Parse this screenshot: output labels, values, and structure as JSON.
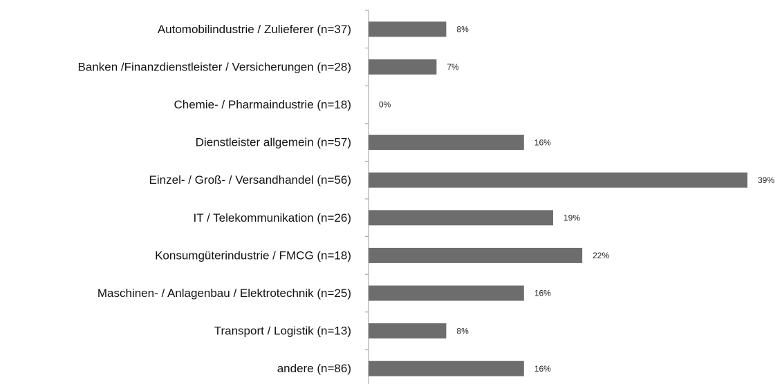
{
  "chart_data": {
    "type": "bar",
    "orientation": "horizontal",
    "categories": [
      "Automobilindustrie / Zulieferer (n=37)",
      "Banken /Finanzdienstleister / Versicherungen (n=28)",
      "Chemie- / Pharmaindustrie (n=18)",
      "Dienstleister allgemein (n=57)",
      "Einzel- / Groß- / Versandhandel (n=56)",
      "IT / Telekommunikation (n=26)",
      "Konsumgüterindustrie / FMCG (n=18)",
      "Maschinen- / Anlagenbau / Elektrotechnik (n=25)",
      "Transport / Logistik (n=13)",
      "andere (n=86)"
    ],
    "values": [
      8,
      7,
      0,
      16,
      39,
      19,
      22,
      16,
      8,
      16
    ],
    "value_labels": [
      "8%",
      "7%",
      "0%",
      "16%",
      "39%",
      "19%",
      "22%",
      "16%",
      "8%",
      "16%"
    ],
    "color": "#6d6d6d"
  }
}
